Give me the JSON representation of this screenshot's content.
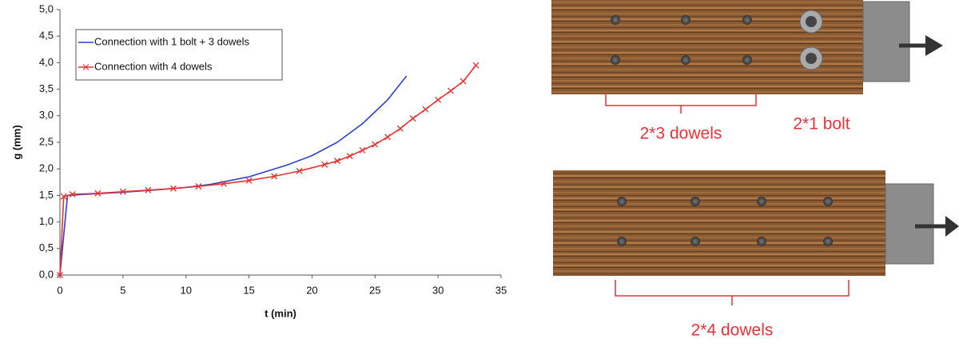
{
  "chart_data": {
    "type": "line",
    "xlabel": "t (min)",
    "ylabel": "g (mm)",
    "xlim": [
      0,
      35
    ],
    "xticks": [
      0,
      5,
      10,
      15,
      20,
      25,
      30,
      35
    ],
    "ylim": [
      0,
      5
    ],
    "yticks": [
      {
        "value": 0,
        "label": "0,0"
      },
      {
        "value": 0.5,
        "label": "0,5"
      },
      {
        "value": 1,
        "label": "1,0"
      },
      {
        "value": 1.5,
        "label": "1,5"
      },
      {
        "value": 2,
        "label": "2,0"
      },
      {
        "value": 2.5,
        "label": "2,5"
      },
      {
        "value": 3,
        "label": "3,0"
      },
      {
        "value": 3.5,
        "label": "3,5"
      },
      {
        "value": 4,
        "label": "4,0"
      },
      {
        "value": 4.5,
        "label": "4,5"
      },
      {
        "value": 5,
        "label": "5,0"
      }
    ],
    "grid": false,
    "legend": "upper left",
    "series": [
      {
        "name": "Connection with 1 bolt + 3 dowels",
        "color": "#2b3fd6",
        "marker": "none",
        "x": [
          0,
          0.6,
          2,
          5,
          8,
          10,
          12,
          15,
          18,
          20,
          22,
          24,
          26,
          27.5
        ],
        "values": [
          0,
          1.5,
          1.52,
          1.56,
          1.61,
          1.65,
          1.71,
          1.85,
          2.07,
          2.25,
          2.5,
          2.85,
          3.3,
          3.75
        ]
      },
      {
        "name": "Connection with 4 dowels",
        "color": "#e8322e",
        "marker": "x",
        "x": [
          0,
          0.3,
          1,
          3,
          5,
          7,
          9,
          11,
          13,
          15,
          17,
          19,
          21,
          22,
          23,
          24,
          25,
          26,
          27,
          28,
          29,
          30,
          31,
          32,
          33
        ],
        "values": [
          0,
          1.48,
          1.52,
          1.54,
          1.57,
          1.6,
          1.63,
          1.67,
          1.72,
          1.78,
          1.86,
          1.96,
          2.08,
          2.15,
          2.24,
          2.35,
          2.46,
          2.6,
          2.76,
          2.95,
          3.12,
          3.3,
          3.47,
          3.65,
          3.95
        ]
      }
    ]
  },
  "diagram": {
    "labels": [
      "2*3 dowels",
      "2*1 bolt",
      "2*4 dowels"
    ]
  }
}
